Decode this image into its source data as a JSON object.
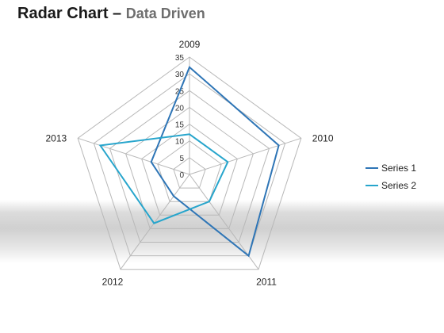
{
  "title": {
    "main": "Radar Chart – ",
    "sub": "Data Driven"
  },
  "colors": {
    "series1": "#2E75B6",
    "series2": "#27A5CC",
    "grid": "#B8B8B8"
  },
  "chart_data": {
    "type": "radar",
    "title": "Radar Chart – Data Driven",
    "categories": [
      "2009",
      "2010",
      "2011",
      "2012",
      "2013"
    ],
    "rlim": [
      0,
      35
    ],
    "ticks": [
      0,
      5,
      10,
      15,
      20,
      25,
      30,
      35
    ],
    "grid": true,
    "legend": "right",
    "series": [
      {
        "name": "Series 1",
        "values": [
          32,
          28,
          30,
          8,
          12
        ]
      },
      {
        "name": "Series 2",
        "values": [
          12,
          12,
          10,
          18,
          28
        ]
      }
    ]
  }
}
